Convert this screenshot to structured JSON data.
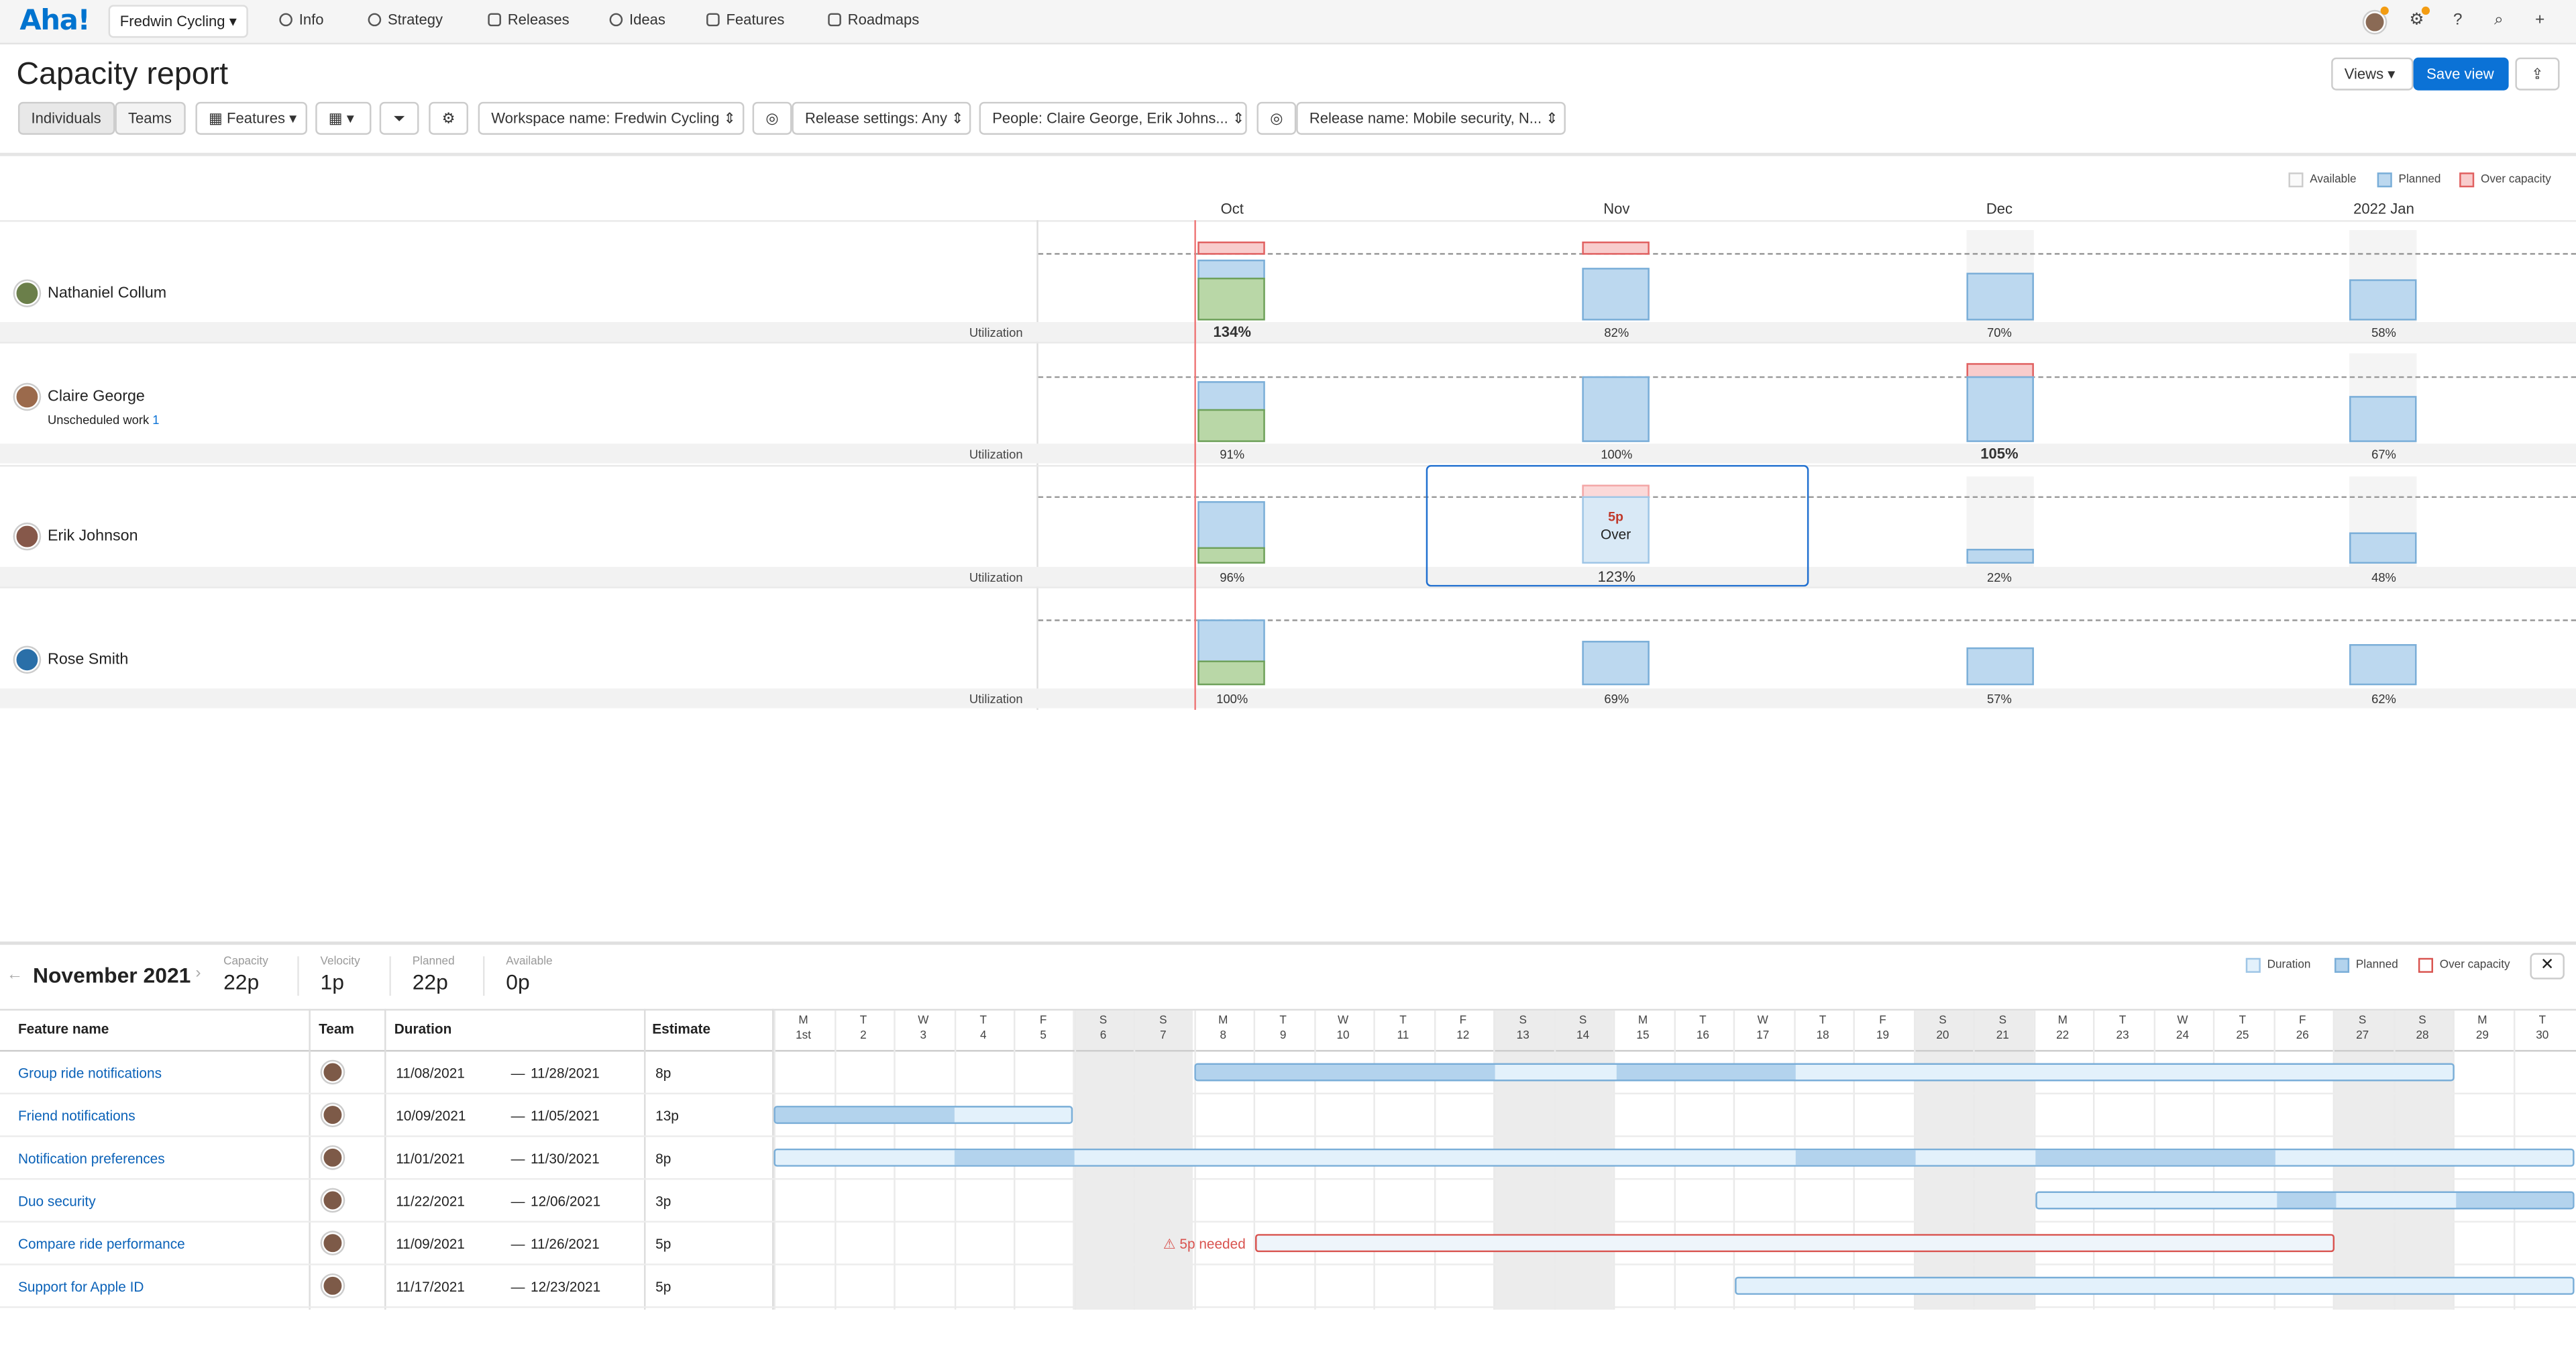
{
  "app": {
    "logo": "Aha!",
    "workspace": "Fredwin Cycling"
  },
  "nav": [
    {
      "label": "Info",
      "icon": "info-icon"
    },
    {
      "label": "Strategy",
      "icon": "target-icon"
    },
    {
      "label": "Releases",
      "icon": "calendar-icon"
    },
    {
      "label": "Ideas",
      "icon": "lightbulb-icon"
    },
    {
      "label": "Features",
      "icon": "grid-icon"
    },
    {
      "label": "Roadmaps",
      "icon": "roadmap-icon"
    }
  ],
  "page": {
    "title": "Capacity report",
    "views_label": "Views",
    "save_label": "Save view"
  },
  "toolbar": {
    "individuals": "Individuals",
    "teams": "Teams",
    "features": "Features",
    "filters": [
      "Workspace name: Fredwin Cycling",
      "Release settings: Any",
      "People: Claire George, Erik Johns...",
      "Release name: Mobile security, N..."
    ]
  },
  "legend": {
    "available": "Available",
    "planned": "Planned",
    "over": "Over capacity"
  },
  "months": [
    "Oct",
    "Nov",
    "Dec",
    "2022 Jan"
  ],
  "people": [
    {
      "name": "Nathaniel Collum",
      "util": [
        "134%",
        "82%",
        "70%",
        "58%"
      ]
    },
    {
      "name": "Claire George",
      "unscheduled": "Unscheduled work",
      "unscheduled_count": "1",
      "util": [
        "91%",
        "100%",
        "105%",
        "67%"
      ]
    },
    {
      "name": "Erik Johnson",
      "util": [
        "96%",
        "123%",
        "22%",
        "48%"
      ]
    },
    {
      "name": "Rose Smith",
      "util": [
        "100%",
        "69%",
        "57%",
        "62%"
      ]
    }
  ],
  "utilization_label": "Utilization",
  "tooltip": {
    "value": "5p",
    "label": "Over"
  },
  "panel": {
    "title": "November 2021",
    "stats": [
      {
        "label": "Capacity",
        "value": "22p"
      },
      {
        "label": "Velocity",
        "value": "1p"
      },
      {
        "label": "Planned",
        "value": "22p"
      },
      {
        "label": "Available",
        "value": "0p"
      }
    ],
    "legend": {
      "duration": "Duration",
      "planned": "Planned",
      "over": "Over capacity"
    },
    "columns": {
      "feature": "Feature name",
      "team": "Team",
      "duration": "Duration",
      "estimate": "Estimate"
    },
    "days": [
      [
        "M",
        "1st"
      ],
      [
        "T",
        "2"
      ],
      [
        "W",
        "3"
      ],
      [
        "T",
        "4"
      ],
      [
        "F",
        "5"
      ],
      [
        "S",
        "6"
      ],
      [
        "S",
        "7"
      ],
      [
        "M",
        "8"
      ],
      [
        "T",
        "9"
      ],
      [
        "W",
        "10"
      ],
      [
        "T",
        "11"
      ],
      [
        "F",
        "12"
      ],
      [
        "S",
        "13"
      ],
      [
        "S",
        "14"
      ],
      [
        "M",
        "15"
      ],
      [
        "T",
        "16"
      ],
      [
        "W",
        "17"
      ],
      [
        "T",
        "18"
      ],
      [
        "F",
        "19"
      ],
      [
        "S",
        "20"
      ],
      [
        "S",
        "21"
      ],
      [
        "M",
        "22"
      ],
      [
        "T",
        "23"
      ],
      [
        "W",
        "24"
      ],
      [
        "T",
        "25"
      ],
      [
        "F",
        "26"
      ],
      [
        "S",
        "27"
      ],
      [
        "S",
        "28"
      ],
      [
        "M",
        "29"
      ],
      [
        "T",
        "30"
      ]
    ],
    "features": [
      {
        "name": "Group ride notifications",
        "start": "11/08/2021",
        "end": "11/28/2021",
        "estimate": "8p"
      },
      {
        "name": "Friend notifications",
        "start": "10/09/2021",
        "end": "11/05/2021",
        "estimate": "13p"
      },
      {
        "name": "Notification preferences",
        "start": "11/01/2021",
        "end": "11/30/2021",
        "estimate": "8p"
      },
      {
        "name": "Duo security",
        "start": "11/22/2021",
        "end": "12/06/2021",
        "estimate": "3p"
      },
      {
        "name": "Compare ride performance",
        "start": "11/09/2021",
        "end": "11/26/2021",
        "estimate": "5p",
        "warning": "5p needed"
      },
      {
        "name": "Support for Apple ID",
        "start": "11/17/2021",
        "end": "12/23/2021",
        "estimate": "5p"
      }
    ]
  }
}
